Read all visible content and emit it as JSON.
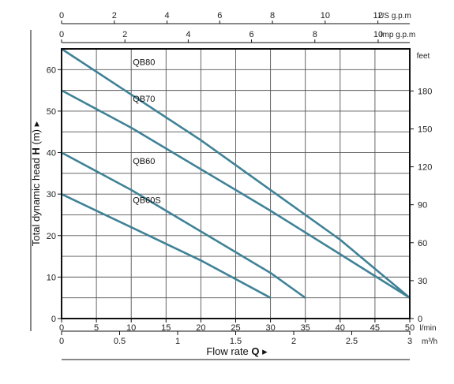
{
  "chart_data": {
    "type": "line",
    "xlabel": {
      "prefix": "Flow rate ",
      "symbol": "Q",
      "suffix": " ▸"
    },
    "ylabel": {
      "prefix": "Total dynamic head ",
      "symbol": "H",
      "suffix": " (m) ▸"
    },
    "xlim": [
      0,
      50
    ],
    "ylim": [
      0,
      65
    ],
    "grid": true,
    "x_ticks": [
      0,
      5,
      10,
      15,
      20,
      25,
      30,
      35,
      40,
      45,
      50
    ],
    "x_unit": "l/min",
    "y_ticks": [
      0,
      10,
      20,
      30,
      40,
      50,
      60
    ],
    "secondary_axes": {
      "m3h": {
        "unit": "m³/h",
        "ticks": [
          {
            "v": 0,
            "t": "0"
          },
          {
            "v": 0.5,
            "t": "0.5"
          },
          {
            "v": 1,
            "t": "1"
          },
          {
            "v": 1.5,
            "t": "1.5"
          },
          {
            "v": 2,
            "t": "2"
          },
          {
            "v": 2.5,
            "t": "2.5"
          },
          {
            "v": 3,
            "t": "3"
          }
        ]
      },
      "us_gpm": {
        "unit": "US g.p.m",
        "ticks": [
          0,
          2,
          4,
          6,
          8,
          10,
          12
        ]
      },
      "imp_gpm": {
        "unit": "Imp g.p.m",
        "ticks": [
          0,
          2,
          4,
          6,
          8,
          10
        ]
      },
      "feet": {
        "unit": "feet",
        "ticks": [
          0,
          30,
          60,
          90,
          120,
          150,
          180
        ]
      }
    },
    "series": [
      {
        "name": "QB80",
        "x": [
          0,
          10,
          20,
          30,
          40,
          45,
          50
        ],
        "y": [
          65,
          54,
          43,
          31,
          19,
          12,
          5
        ]
      },
      {
        "name": "QB70",
        "x": [
          0,
          10,
          20,
          30,
          40,
          50
        ],
        "y": [
          55,
          46,
          36,
          26,
          15.5,
          5
        ]
      },
      {
        "name": "QB60",
        "x": [
          0,
          10,
          20,
          30,
          35
        ],
        "y": [
          40,
          31,
          21,
          11,
          5
        ]
      },
      {
        "name": "QB60S",
        "x": [
          0,
          10,
          20,
          30
        ],
        "y": [
          30,
          22,
          14,
          5
        ]
      }
    ],
    "line_color": "#3f8297"
  }
}
